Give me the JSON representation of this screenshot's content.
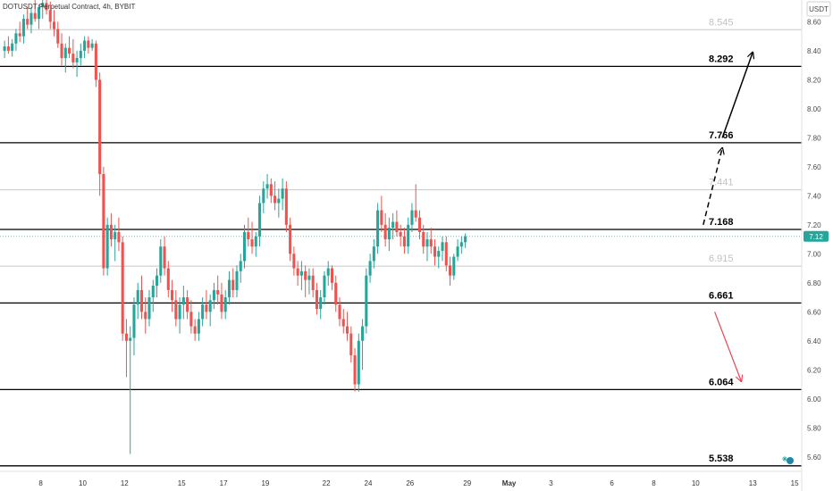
{
  "chart_data": {
    "type": "candlestick",
    "title": "DOTUSDT Perpetual Contract, 4h, BYBIT",
    "unit": "USDT",
    "ylim": [
      5.5,
      8.75
    ],
    "y_ticks": [
      5.6,
      5.8,
      6.0,
      6.2,
      6.4,
      6.6,
      6.8,
      7.0,
      7.2,
      7.4,
      7.6,
      7.8,
      8.0,
      8.2,
      8.4,
      8.6
    ],
    "y_tick_labels": [
      "5.60",
      "5.80",
      "6.00",
      "6.20",
      "6.40",
      "6.60",
      "6.80",
      "7.00",
      "7.20",
      "7.40",
      "7.60",
      "7.80",
      "8.00",
      "8.20",
      "8.40",
      "8.60"
    ],
    "x_ticks": [
      {
        "label": "8",
        "bar": 10
      },
      {
        "label": "10",
        "bar": 21
      },
      {
        "label": "12",
        "bar": 32
      },
      {
        "label": "15",
        "bar": 47
      },
      {
        "label": "17",
        "bar": 58
      },
      {
        "label": "19",
        "bar": 69
      },
      {
        "label": "22",
        "bar": 85
      },
      {
        "label": "24",
        "bar": 96
      },
      {
        "label": "26",
        "bar": 107
      },
      {
        "label": "29",
        "bar": 122
      },
      {
        "label": "May",
        "bar": 133
      },
      {
        "label": "3",
        "bar": 144
      },
      {
        "label": "6",
        "bar": 160
      },
      {
        "label": "8",
        "bar": 171
      },
      {
        "label": "10",
        "bar": 182
      },
      {
        "label": "13",
        "bar": 197
      },
      {
        "label": "15",
        "bar": 208
      },
      {
        "label": "17",
        "bar": 219
      }
    ],
    "current_price": {
      "value": 7.12,
      "label": "7.12"
    },
    "levels": [
      {
        "value": 8.545,
        "label": "8.545",
        "style": "minor"
      },
      {
        "value": 8.292,
        "label": "8.292",
        "style": "major"
      },
      {
        "value": 7.766,
        "label": "7.766",
        "style": "major"
      },
      {
        "value": 7.441,
        "label": "7.441",
        "style": "minor"
      },
      {
        "value": 7.168,
        "label": "7.168",
        "style": "major"
      },
      {
        "value": 6.915,
        "label": "6.915",
        "style": "minor"
      },
      {
        "value": 6.661,
        "label": "6.661",
        "style": "major"
      },
      {
        "value": 6.064,
        "label": "6.064",
        "style": "major"
      },
      {
        "value": 5.538,
        "label": "5.538",
        "style": "major"
      }
    ],
    "arrows": [
      {
        "name": "projection-dashed",
        "from": {
          "bar": 184,
          "y": 7.2
        },
        "to": {
          "bar": 189,
          "y": 7.73
        },
        "style": "dashed",
        "color": "#000000"
      },
      {
        "name": "bullish-target",
        "from": {
          "bar": 189,
          "y": 7.8
        },
        "to": {
          "bar": 197,
          "y": 8.39
        },
        "style": "solid",
        "color": "#000000"
      },
      {
        "name": "bearish-target",
        "from": {
          "bar": 187,
          "y": 6.6
        },
        "to": {
          "bar": 194,
          "y": 6.12
        },
        "style": "solid",
        "color": "#e8445a"
      }
    ],
    "candles": [
      [
        8.4,
        8.47,
        8.35,
        8.43
      ],
      [
        8.43,
        8.5,
        8.38,
        8.4
      ],
      [
        8.4,
        8.48,
        8.36,
        8.45
      ],
      [
        8.45,
        8.55,
        8.4,
        8.52
      ],
      [
        8.52,
        8.6,
        8.46,
        8.5
      ],
      [
        8.5,
        8.65,
        8.45,
        8.62
      ],
      [
        8.62,
        8.7,
        8.55,
        8.58
      ],
      [
        8.58,
        8.7,
        8.52,
        8.66
      ],
      [
        8.66,
        8.75,
        8.6,
        8.62
      ],
      [
        8.62,
        8.72,
        8.55,
        8.7
      ],
      [
        8.7,
        8.76,
        8.62,
        8.73
      ],
      [
        8.73,
        8.76,
        8.65,
        8.68
      ],
      [
        8.68,
        8.74,
        8.55,
        8.6
      ],
      [
        8.6,
        8.68,
        8.5,
        8.55
      ],
      [
        8.55,
        8.6,
        8.42,
        8.45
      ],
      [
        8.45,
        8.52,
        8.3,
        8.35
      ],
      [
        8.35,
        8.45,
        8.25,
        8.42
      ],
      [
        8.42,
        8.5,
        8.35,
        8.38
      ],
      [
        8.38,
        8.48,
        8.28,
        8.32
      ],
      [
        8.32,
        8.4,
        8.22,
        8.35
      ],
      [
        8.35,
        8.45,
        8.3,
        8.4
      ],
      [
        8.4,
        8.5,
        8.35,
        8.47
      ],
      [
        8.47,
        8.5,
        8.38,
        8.42
      ],
      [
        8.42,
        8.48,
        8.4,
        8.45
      ],
      [
        8.45,
        8.47,
        8.15,
        8.2
      ],
      [
        8.2,
        8.25,
        7.4,
        7.55
      ],
      [
        7.55,
        7.6,
        6.85,
        6.9
      ],
      [
        6.9,
        7.25,
        6.85,
        7.2
      ],
      [
        7.2,
        7.28,
        7.05,
        7.1
      ],
      [
        7.1,
        7.2,
        6.95,
        7.15
      ],
      [
        7.15,
        7.25,
        7.02,
        7.08
      ],
      [
        7.08,
        7.12,
        6.4,
        6.45
      ],
      [
        6.45,
        6.55,
        6.15,
        6.4
      ],
      [
        6.4,
        6.5,
        5.62,
        6.42
      ],
      [
        6.42,
        6.7,
        6.3,
        6.65
      ],
      [
        6.65,
        6.8,
        6.55,
        6.75
      ],
      [
        6.75,
        6.85,
        6.55,
        6.6
      ],
      [
        6.6,
        6.7,
        6.45,
        6.55
      ],
      [
        6.55,
        6.75,
        6.5,
        6.7
      ],
      [
        6.7,
        6.82,
        6.6,
        6.78
      ],
      [
        6.78,
        6.9,
        6.7,
        6.85
      ],
      [
        6.85,
        7.1,
        6.8,
        7.05
      ],
      [
        7.05,
        7.12,
        6.85,
        6.9
      ],
      [
        6.9,
        6.95,
        6.7,
        6.75
      ],
      [
        6.75,
        6.82,
        6.6,
        6.68
      ],
      [
        6.68,
        6.75,
        6.5,
        6.55
      ],
      [
        6.55,
        6.7,
        6.45,
        6.65
      ],
      [
        6.65,
        6.78,
        6.55,
        6.7
      ],
      [
        6.7,
        6.75,
        6.55,
        6.6
      ],
      [
        6.6,
        6.68,
        6.45,
        6.5
      ],
      [
        6.5,
        6.55,
        6.4,
        6.45
      ],
      [
        6.45,
        6.6,
        6.4,
        6.55
      ],
      [
        6.55,
        6.7,
        6.5,
        6.65
      ],
      [
        6.65,
        6.75,
        6.55,
        6.6
      ],
      [
        6.6,
        6.72,
        6.5,
        6.68
      ],
      [
        6.68,
        6.8,
        6.62,
        6.75
      ],
      [
        6.75,
        6.85,
        6.65,
        6.72
      ],
      [
        6.72,
        6.8,
        6.55,
        6.6
      ],
      [
        6.6,
        6.75,
        6.55,
        6.7
      ],
      [
        6.7,
        6.88,
        6.65,
        6.82
      ],
      [
        6.82,
        6.9,
        6.7,
        6.75
      ],
      [
        6.75,
        6.92,
        6.7,
        6.88
      ],
      [
        6.88,
        7.0,
        6.8,
        6.95
      ],
      [
        6.95,
        7.2,
        6.9,
        7.15
      ],
      [
        7.15,
        7.25,
        7.05,
        7.1
      ],
      [
        7.1,
        7.22,
        7.0,
        7.05
      ],
      [
        7.05,
        7.15,
        6.98,
        7.12
      ],
      [
        7.12,
        7.4,
        7.05,
        7.35
      ],
      [
        7.35,
        7.5,
        7.28,
        7.45
      ],
      [
        7.45,
        7.55,
        7.38,
        7.48
      ],
      [
        7.48,
        7.52,
        7.35,
        7.4
      ],
      [
        7.4,
        7.5,
        7.3,
        7.35
      ],
      [
        7.35,
        7.45,
        7.25,
        7.38
      ],
      [
        7.38,
        7.52,
        7.3,
        7.45
      ],
      [
        7.45,
        7.5,
        7.15,
        7.2
      ],
      [
        7.2,
        7.25,
        6.95,
        7.0
      ],
      [
        7.0,
        7.05,
        6.85,
        6.9
      ],
      [
        6.9,
        6.95,
        6.78,
        6.85
      ],
      [
        6.85,
        6.95,
        6.75,
        6.88
      ],
      [
        6.88,
        6.92,
        6.7,
        6.82
      ],
      [
        6.82,
        6.9,
        6.72,
        6.85
      ],
      [
        6.85,
        6.9,
        6.7,
        6.75
      ],
      [
        6.75,
        6.8,
        6.58,
        6.62
      ],
      [
        6.62,
        6.75,
        6.55,
        6.7
      ],
      [
        6.7,
        6.88,
        6.65,
        6.85
      ],
      [
        6.85,
        6.95,
        6.78,
        6.9
      ],
      [
        6.9,
        6.92,
        6.75,
        6.8
      ],
      [
        6.8,
        6.85,
        6.6,
        6.65
      ],
      [
        6.65,
        6.7,
        6.5,
        6.55
      ],
      [
        6.55,
        6.62,
        6.45,
        6.5
      ],
      [
        6.5,
        6.6,
        6.4,
        6.45
      ],
      [
        6.45,
        6.5,
        6.25,
        6.3
      ],
      [
        6.3,
        6.35,
        6.05,
        6.1
      ],
      [
        6.1,
        6.45,
        6.05,
        6.4
      ],
      [
        6.4,
        6.55,
        6.2,
        6.5
      ],
      [
        6.5,
        6.9,
        6.45,
        6.85
      ],
      [
        6.85,
        7.0,
        6.8,
        6.95
      ],
      [
        6.95,
        7.1,
        6.9,
        7.05
      ],
      [
        7.05,
        7.35,
        7.0,
        7.3
      ],
      [
        7.3,
        7.4,
        7.15,
        7.2
      ],
      [
        7.2,
        7.28,
        7.05,
        7.1
      ],
      [
        7.1,
        7.25,
        7.02,
        7.18
      ],
      [
        7.18,
        7.28,
        7.1,
        7.22
      ],
      [
        7.22,
        7.3,
        7.12,
        7.15
      ],
      [
        7.15,
        7.2,
        7.05,
        7.12
      ],
      [
        7.12,
        7.18,
        7.0,
        7.05
      ],
      [
        7.05,
        7.25,
        7.0,
        7.2
      ],
      [
        7.2,
        7.35,
        7.15,
        7.3
      ],
      [
        7.3,
        7.48,
        7.22,
        7.25
      ],
      [
        7.25,
        7.3,
        7.1,
        7.15
      ],
      [
        7.15,
        7.2,
        7.0,
        7.05
      ],
      [
        7.05,
        7.15,
        6.95,
        7.1
      ],
      [
        7.1,
        7.18,
        7.0,
        7.05
      ],
      [
        7.05,
        7.1,
        6.92,
        6.98
      ],
      [
        6.98,
        7.05,
        6.9,
        7.02
      ],
      [
        7.02,
        7.12,
        6.95,
        7.08
      ],
      [
        7.08,
        7.12,
        6.88,
        6.92
      ],
      [
        6.92,
        6.98,
        6.78,
        6.85
      ],
      [
        6.85,
        7.0,
        6.82,
        6.98
      ],
      [
        6.98,
        7.1,
        6.95,
        7.05
      ],
      [
        7.05,
        7.12,
        7.0,
        7.08
      ],
      [
        7.08,
        7.14,
        7.04,
        7.12
      ]
    ]
  },
  "colors": {
    "up": "#26a69a",
    "down": "#ef5350",
    "major_line": "#000000",
    "minor_line": "#c8c8c8",
    "minor_label": "#c2c2c2",
    "price_badge": "#26a69a"
  },
  "icons": {
    "logo": "tradingview-logo-icon"
  }
}
